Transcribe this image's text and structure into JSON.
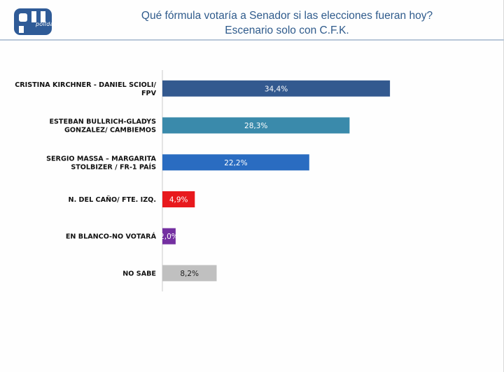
{
  "header": {
    "logo_text": "polldata",
    "title_line1": "Qué fórmula votaría a Senador si las elecciones fueran hoy?",
    "title_line2": "Escenario solo con C.F.K."
  },
  "chart_data": {
    "type": "bar",
    "orientation": "horizontal",
    "categories": [
      [
        "CRISTINA KIRCHNER - DANIEL SCIOLI/",
        "FPV"
      ],
      [
        "ESTEBAN BULLRICH-GLADYS",
        "GONZALEZ/ CAMBIEMOS"
      ],
      [
        "SERGIO MASSA – MARGARITA",
        "STOLBIZER / FR-1 PAÍS"
      ],
      [
        "N. DEL CAÑO/ FTE. IZQ."
      ],
      [
        "EN BLANCO-NO VOTARÁ"
      ],
      [
        "NO SABE"
      ]
    ],
    "values": [
      34.4,
      28.3,
      22.2,
      4.9,
      2.0,
      8.2
    ],
    "value_labels": [
      "34,4%",
      "28,3%",
      "22,2%",
      "4,9%",
      "2,0%",
      "8,2%"
    ],
    "colors": [
      "#33598f",
      "#3a8aab",
      "#2a6cc1",
      "#e8191d",
      "#7430a1",
      "#c0c0c0"
    ],
    "label_colors": [
      "#ffffff",
      "#ffffff",
      "#ffffff",
      "#ffffff",
      "#ffffff",
      "#222222"
    ],
    "xlim": [
      0,
      50
    ],
    "grid": false,
    "legend": "none"
  }
}
